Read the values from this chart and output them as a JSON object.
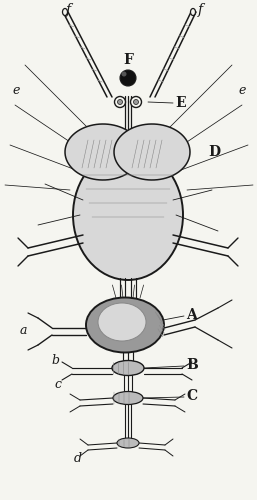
{
  "bg_color": "#f5f5f0",
  "ink": "#1a1a1a",
  "gray1": "#999999",
  "gray2": "#bbbbbb",
  "gray3": "#d8d8d8",
  "gray4": "#888888",
  "black": "#111111",
  "labels": {
    "F": "F",
    "E": "E",
    "D": "D",
    "A": "A",
    "B": "B",
    "C": "C",
    "a": "a",
    "b": "b",
    "c": "c",
    "d": "d",
    "e": "e",
    "f": "f"
  }
}
